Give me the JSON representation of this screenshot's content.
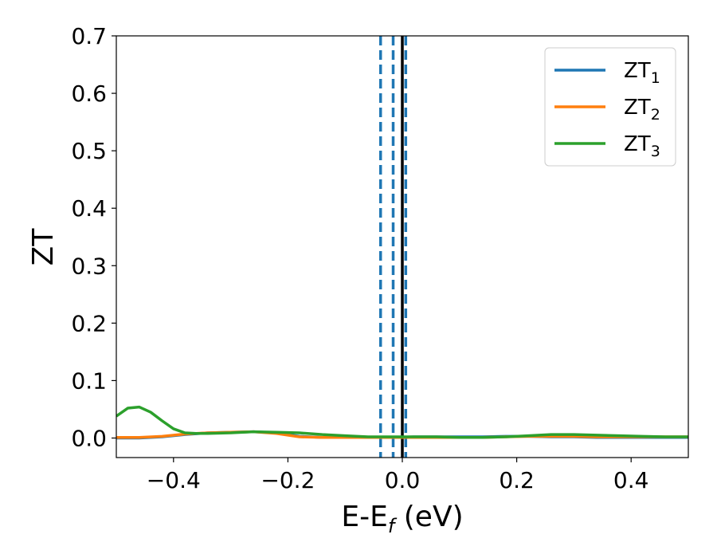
{
  "chart_data": {
    "type": "line",
    "xlabel": "E-E",
    "xlabel_sub": "f",
    "xlabel_unit": " (eV)",
    "ylabel": "ZT",
    "xlim": [
      -0.5,
      0.5
    ],
    "ylim": [
      -0.034,
      0.7
    ],
    "xticks": [
      -0.4,
      -0.2,
      0.0,
      0.2,
      0.4
    ],
    "xtick_labels": [
      "−0.4",
      "−0.2",
      "0.0",
      "0.2",
      "0.4"
    ],
    "yticks": [
      0.0,
      0.1,
      0.2,
      0.3,
      0.4,
      0.5,
      0.6,
      0.7
    ],
    "ytick_labels": [
      "0.0",
      "0.1",
      "0.2",
      "0.3",
      "0.4",
      "0.5",
      "0.6",
      "0.7"
    ],
    "legend_position": "top-right",
    "series": [
      {
        "name": "ZT",
        "sub": "1",
        "color": "#1f77b4",
        "x": [
          -0.5,
          -0.46,
          -0.42,
          -0.38,
          -0.34,
          -0.3,
          -0.26,
          -0.22,
          -0.18,
          -0.14,
          -0.1,
          -0.06,
          -0.02,
          0.02,
          0.06,
          0.1,
          0.14,
          0.18,
          0.22,
          0.26,
          0.3,
          0.34,
          0.38,
          0.42,
          0.46,
          0.5
        ],
        "y": [
          0.0,
          0.0,
          0.002,
          0.006,
          0.009,
          0.01,
          0.011,
          0.009,
          0.003,
          0.001,
          0.001,
          0.001,
          0.001,
          0.002,
          0.002,
          0.002,
          0.002,
          0.003,
          0.003,
          0.002,
          0.002,
          0.001,
          0.001,
          0.001,
          0.001,
          0.001
        ]
      },
      {
        "name": "ZT",
        "sub": "2",
        "color": "#ff7f0e",
        "x": [
          -0.5,
          -0.46,
          -0.42,
          -0.38,
          -0.34,
          -0.3,
          -0.26,
          -0.22,
          -0.18,
          -0.14,
          -0.1,
          -0.06,
          -0.02,
          0.02,
          0.06,
          0.1,
          0.14,
          0.18,
          0.22,
          0.26,
          0.3,
          0.34,
          0.38,
          0.42,
          0.46,
          0.5
        ],
        "y": [
          0.001,
          0.001,
          0.003,
          0.007,
          0.009,
          0.01,
          0.011,
          0.008,
          0.002,
          0.001,
          0.001,
          0.001,
          0.001,
          0.001,
          0.001,
          0.001,
          0.001,
          0.002,
          0.003,
          0.003,
          0.003,
          0.002,
          0.002,
          0.002,
          0.002,
          0.002
        ]
      },
      {
        "name": "ZT",
        "sub": "3",
        "color": "#2ca02c",
        "x": [
          -0.5,
          -0.48,
          -0.46,
          -0.44,
          -0.42,
          -0.4,
          -0.38,
          -0.36,
          -0.34,
          -0.3,
          -0.26,
          -0.22,
          -0.18,
          -0.14,
          -0.1,
          -0.06,
          -0.02,
          0.02,
          0.06,
          0.1,
          0.14,
          0.18,
          0.22,
          0.26,
          0.3,
          0.34,
          0.38,
          0.42,
          0.46,
          0.5
        ],
        "y": [
          0.038,
          0.052,
          0.054,
          0.045,
          0.03,
          0.016,
          0.009,
          0.008,
          0.008,
          0.009,
          0.011,
          0.01,
          0.009,
          0.006,
          0.004,
          0.002,
          0.002,
          0.002,
          0.002,
          0.001,
          0.001,
          0.002,
          0.004,
          0.006,
          0.006,
          0.005,
          0.004,
          0.003,
          0.002,
          0.002
        ]
      }
    ],
    "vlines": [
      {
        "x": -0.038,
        "color": "#1f77b4",
        "style": "dashed"
      },
      {
        "x": -0.016,
        "color": "#1f77b4",
        "style": "dashed"
      },
      {
        "x": 0.006,
        "color": "#1f77b4",
        "style": "dashed"
      },
      {
        "x": 0.0,
        "color": "#000000",
        "style": "solid"
      }
    ]
  }
}
